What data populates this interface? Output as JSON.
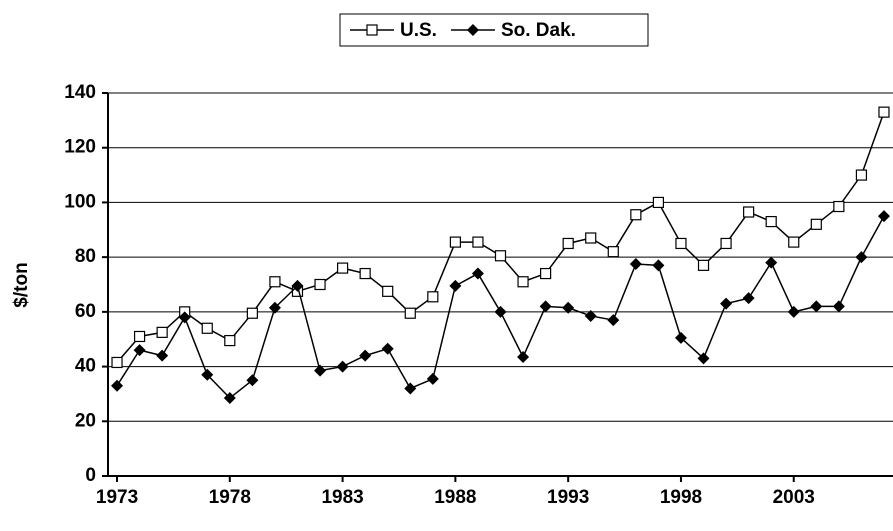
{
  "chart_data": {
    "type": "line",
    "y_label": "$/ton",
    "x": [
      1973,
      1974,
      1975,
      1976,
      1977,
      1978,
      1979,
      1980,
      1981,
      1982,
      1983,
      1984,
      1985,
      1986,
      1987,
      1988,
      1989,
      1990,
      1991,
      1992,
      1993,
      1994,
      1995,
      1996,
      1997,
      1998,
      1999,
      2000,
      2001,
      2002,
      2003,
      2004,
      2005,
      2006,
      2007
    ],
    "series": [
      {
        "name": "U.S.",
        "color": "#000000",
        "marker": "square-open",
        "values": [
          41.5,
          51,
          52.5,
          60,
          54,
          49.5,
          59.5,
          71,
          67.5,
          70,
          76,
          74,
          67.5,
          59.5,
          65.5,
          85.5,
          85.5,
          80.5,
          71,
          74,
          85,
          87,
          82,
          95.5,
          100,
          85,
          77,
          85,
          96.5,
          93,
          85.5,
          92,
          98.5,
          110,
          133
        ]
      },
      {
        "name": "So. Dak.",
        "color": "#000000",
        "marker": "diamond",
        "values": [
          33,
          46,
          44,
          58,
          37,
          28.5,
          35,
          61.5,
          69.5,
          38.5,
          40,
          44,
          46.5,
          32,
          35.5,
          69.5,
          74,
          60,
          43.5,
          62,
          61.5,
          58.5,
          57,
          77.5,
          77,
          50.5,
          43,
          63,
          65,
          78,
          60,
          62,
          62,
          80,
          95
        ]
      }
    ],
    "xlim": [
      1972.6,
      2007.4
    ],
    "xticks": [
      1973,
      1978,
      1983,
      1988,
      1993,
      1998,
      2003
    ],
    "ylim": [
      0,
      140
    ],
    "yticks": [
      0,
      20,
      40,
      60,
      80,
      100,
      120,
      140
    ],
    "grid": true,
    "legend": "top"
  }
}
